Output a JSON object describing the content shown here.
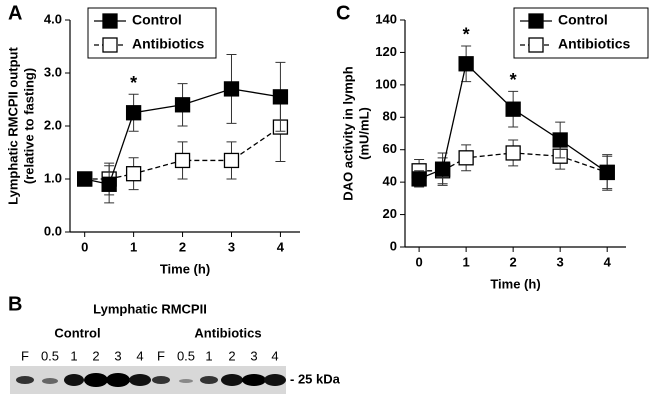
{
  "chart_data": [
    {
      "type": "line",
      "panel": "A",
      "y_label": [
        "Lymphatic RMCPII output",
        "(relative to fasting)"
      ],
      "x_label": "Time (h)",
      "x": [
        0,
        0.5,
        1,
        2,
        3,
        4
      ],
      "series": [
        {
          "name": "Control",
          "color": "#000000",
          "line_style": "solid",
          "marker_fill": "#000000",
          "values": [
            1.0,
            0.9,
            2.25,
            2.4,
            2.7,
            2.55
          ],
          "errors": [
            0.1,
            0.35,
            0.35,
            0.4,
            0.65,
            0.65
          ]
        },
        {
          "name": "Antibiotics",
          "color": "#000000",
          "line_style": "dashed",
          "marker_fill": "#ffffff",
          "values": [
            1.0,
            1.0,
            1.1,
            1.35,
            1.35,
            1.98
          ],
          "errors": [
            0.1,
            0.3,
            0.3,
            0.35,
            0.35,
            0.65
          ]
        }
      ],
      "annotations": [
        {
          "text": "*",
          "x": 1
        }
      ],
      "xlim": [
        -0.3,
        4.4
      ],
      "xticks": [
        0,
        1,
        2,
        3,
        4
      ],
      "ylim": [
        0,
        4
      ],
      "yticks": [
        {
          "value": 0,
          "label": "0.0"
        },
        {
          "value": 1,
          "label": "1.0"
        },
        {
          "value": 2,
          "label": "2.0"
        },
        {
          "value": 3,
          "label": "3.0"
        },
        {
          "value": 4,
          "label": "4.0"
        }
      ],
      "legend": "upper-left"
    },
    {
      "type": "line",
      "panel": "C",
      "y_label": [
        "DAO activity in lymph",
        "(mU/mL)"
      ],
      "x_label": "Time (h)",
      "x": [
        0,
        0.5,
        1,
        2,
        3,
        4
      ],
      "series": [
        {
          "name": "Control",
          "color": "#000000",
          "line_style": "solid",
          "marker_fill": "#000000",
          "values": [
            42,
            48,
            113,
            85,
            66,
            46
          ],
          "errors": [
            5,
            10,
            11,
            11,
            11,
            11
          ]
        },
        {
          "name": "Antibiotics",
          "color": "#000000",
          "line_style": "dashed",
          "marker_fill": "#ffffff",
          "values": [
            47,
            47,
            55,
            58,
            56,
            46
          ],
          "errors": [
            7,
            8,
            8,
            8,
            8,
            10
          ]
        }
      ],
      "annotations": [
        {
          "text": "*",
          "x": 1
        },
        {
          "text": "*",
          "x": 2
        }
      ],
      "xlim": [
        -0.3,
        4.4
      ],
      "xticks": [
        0,
        1,
        2,
        3,
        4
      ],
      "ylim": [
        0,
        140
      ],
      "yticks": [
        0,
        20,
        40,
        60,
        80,
        100,
        120,
        140
      ],
      "legend": "upper-right"
    }
  ],
  "blot": {
    "panel": "B",
    "title": "Lymphatic RMCPII",
    "groups": [
      {
        "name": "Control",
        "lanes": [
          "F",
          "0.5",
          "1",
          "2",
          "3",
          "4"
        ]
      },
      {
        "name": "Antibiotics",
        "lanes": [
          "F",
          "0.5",
          "1",
          "2",
          "3",
          "4"
        ]
      }
    ],
    "marker": "- 25 kDa"
  }
}
